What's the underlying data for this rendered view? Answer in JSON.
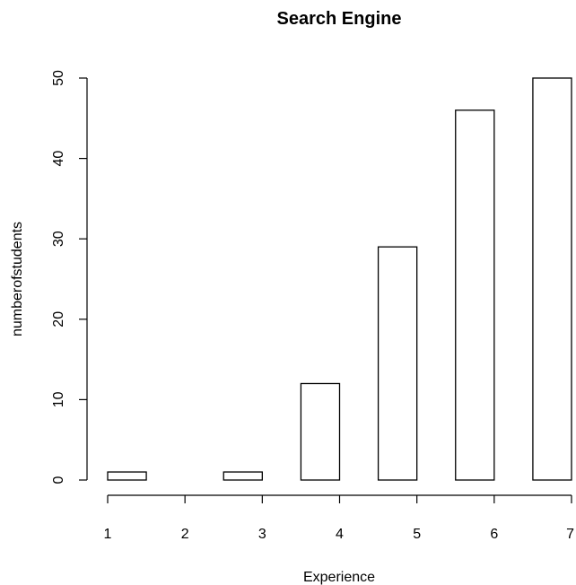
{
  "chart_data": {
    "type": "bar",
    "title": "Search Engine",
    "xlabel": "Experience",
    "ylabel": "numberofstudents",
    "categories": [
      "1",
      "2",
      "3",
      "4",
      "5",
      "6",
      "7"
    ],
    "bars": [
      {
        "x_start": 1.0,
        "x_end": 1.5,
        "value": 1
      },
      {
        "x_start": 1.5,
        "x_end": 2.0,
        "value": 0
      },
      {
        "x_start": 2.0,
        "x_end": 2.5,
        "value": 0
      },
      {
        "x_start": 2.5,
        "x_end": 3.0,
        "value": 1
      },
      {
        "x_start": 3.0,
        "x_end": 3.5,
        "value": 0
      },
      {
        "x_start": 3.5,
        "x_end": 4.0,
        "value": 12
      },
      {
        "x_start": 4.0,
        "x_end": 4.5,
        "value": 0
      },
      {
        "x_start": 4.5,
        "x_end": 5.0,
        "value": 29
      },
      {
        "x_start": 5.0,
        "x_end": 5.5,
        "value": 0
      },
      {
        "x_start": 5.5,
        "x_end": 6.0,
        "value": 46
      },
      {
        "x_start": 6.0,
        "x_end": 6.5,
        "value": 0
      },
      {
        "x_start": 6.5,
        "x_end": 7.0,
        "value": 50
      }
    ],
    "xticks": [
      1,
      2,
      3,
      4,
      5,
      6,
      7
    ],
    "yticks": [
      0,
      10,
      20,
      30,
      40,
      50
    ],
    "xlim": [
      1,
      7
    ],
    "ylim": [
      0,
      50
    ],
    "grid": false,
    "legend": "none",
    "bar_fill": "#ffffff",
    "bar_stroke": "#000000"
  }
}
